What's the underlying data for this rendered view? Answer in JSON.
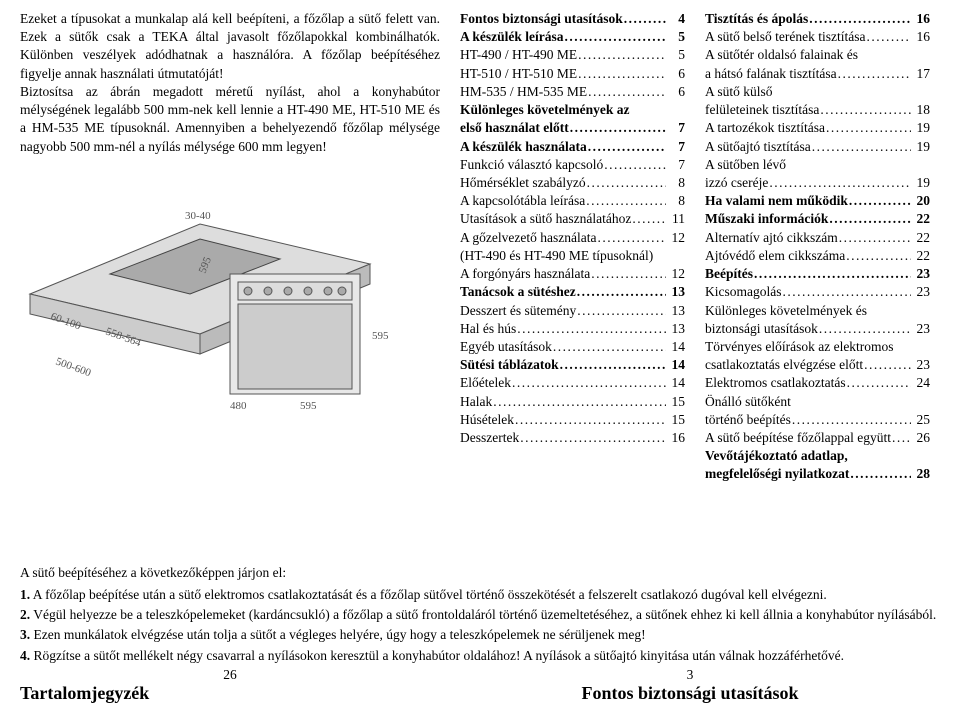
{
  "intro": {
    "p1": "Ezeket a típusokat a munkalap alá kell beépíteni, a főzőlap a sütő felett van. Ezek a sütők csak a TEKA által javasolt főzőlapokkal kombinálhatók. Különben veszélyek adódhatnak a használóra. A főzőlap beépítéséhez figyelje annak használati útmutatóját!",
    "p2": "Biztosítsa az ábrán megadott méretű nyílást, ahol a konyhabútor mélységének legalább 500 mm-nek kell lennie a HT-490 ME, HT-510 ME és a HM-535 ME típusoknál. Amennyiben a behelyezendő főzőlap mélysége nagyobb 500 mm-nél a nyílás mélysége 600 mm legyen!"
  },
  "toc_left": [
    {
      "label": "Fontos biztonsági utasítások",
      "page": "4",
      "bold": true
    },
    {
      "label": "A készülék leírása",
      "page": "5",
      "bold": true
    },
    {
      "label": "HT-490 / HT-490 ME",
      "page": "5",
      "bold": false
    },
    {
      "label": "HT-510 / HT-510 ME",
      "page": "6",
      "bold": false
    },
    {
      "label": "HM-535 / HM-535 ME",
      "page": "6",
      "bold": false
    },
    {
      "label": "Különleges követelmények az első használat előtt",
      "page": "7",
      "bold": true,
      "wrap": true
    },
    {
      "label": "A készülék használata",
      "page": "7",
      "bold": true
    },
    {
      "label": "Funkció választó kapcsoló",
      "page": "7",
      "bold": false
    },
    {
      "label": "Hőmérséklet szabályzó",
      "page": "8",
      "bold": false
    },
    {
      "label": "A kapcsolótábla leírása",
      "page": "8",
      "bold": false
    },
    {
      "label": "Utasítások a sütő használatához",
      "page": "11",
      "bold": false
    },
    {
      "label": "A gőzelvezető használata",
      "page": "12",
      "bold": false
    },
    {
      "label": "(HT-490 és HT-490 ME típusoknál)",
      "page": "",
      "bold": false,
      "nodots": true
    },
    {
      "label": "A forgónyárs használata",
      "page": "12",
      "bold": false
    },
    {
      "label": "Tanácsok a sütéshez",
      "page": "13",
      "bold": true
    },
    {
      "label": "Desszert és sütemény",
      "page": "13",
      "bold": false
    },
    {
      "label": "Hal és hús",
      "page": "13",
      "bold": false
    },
    {
      "label": "Egyéb utasítások",
      "page": "14",
      "bold": false
    },
    {
      "label": "Sütési táblázatok",
      "page": "14",
      "bold": true
    },
    {
      "label": "Előételek",
      "page": "14",
      "bold": false
    },
    {
      "label": "Halak",
      "page": "15",
      "bold": false
    },
    {
      "label": "Húsételek",
      "page": "15",
      "bold": false
    },
    {
      "label": "Desszertek",
      "page": "16",
      "bold": false
    }
  ],
  "toc_right": [
    {
      "label": "Tisztítás és ápolás",
      "page": "16",
      "bold": true
    },
    {
      "label": "A sütő belső terének tisztítása",
      "page": "16",
      "bold": false
    },
    {
      "label": "A sütőtér oldalsó falainak és a hátsó falának tisztítása",
      "page": "17",
      "bold": false,
      "wrap": true
    },
    {
      "label": "A sütő külső felületeinek tisztítása",
      "page": "18",
      "bold": false,
      "wrap": true
    },
    {
      "label": "A tartozékok tisztítása",
      "page": "19",
      "bold": false
    },
    {
      "label": "A sütőajtó tisztítása",
      "page": "19",
      "bold": false
    },
    {
      "label": "A sütőben lévő izzó cseréje",
      "page": "19",
      "bold": false,
      "wrap": true
    },
    {
      "label": "Ha valami nem működik",
      "page": "20",
      "bold": true
    },
    {
      "label": "Műszaki információk",
      "page": "22",
      "bold": true
    },
    {
      "label": "Alternatív ajtó cikkszám",
      "page": "22",
      "bold": false
    },
    {
      "label": "Ajtóvédő elem cikkszáma",
      "page": "22",
      "bold": false
    },
    {
      "label": "Beépítés",
      "page": "23",
      "bold": true
    },
    {
      "label": "Kicsomagolás",
      "page": "23",
      "bold": false
    },
    {
      "label": "Különleges követelmények és biztonsági utasítások",
      "page": "23",
      "bold": false,
      "wrap": true
    },
    {
      "label": "Törvényes előírások az elektromos csatlakoztatás elvégzése előtt",
      "page": "23",
      "bold": false,
      "wrap": true
    },
    {
      "label": "Elektromos csatlakoztatás",
      "page": "24",
      "bold": false
    },
    {
      "label": "Önálló sütőként történő beépítés",
      "page": "25",
      "bold": false,
      "wrap": true
    },
    {
      "label": "A sütő beépítése főzőlappal együtt",
      "page": "26",
      "bold": false
    },
    {
      "label": "Vevőtájékoztató adatlap, megfelelőségi nyilatkozat",
      "page": "28",
      "bold": true,
      "wrap": true
    }
  ],
  "bottom": {
    "lead": "A sütő beépítéséhez a következőképpen járjon el:",
    "steps": [
      "A főzőlap beépítése után a sütő elektromos csatlakoztatását és a főzőlap sütővel történő összekötését a felszerelt csatlakozó dugóval kell elvégezni.",
      "Végül helyezze be a teleszkópelemeket (kardáncsukló) a főzőlap a sütő frontoldaláról történő üzemeltetéséhez, a sütőnek ehhez ki kell állnia a konyhabútor nyílásából.",
      "Ezen munkálatok elvégzése után tolja a sütőt a végleges helyére, úgy hogy a teleszkópelemek ne sérüljenek meg!",
      "Rögzítse a sütőt mellékelt négy csavarral a nyílásokon keresztül a konyhabútor oldalához! A nyílások a sütőajtó kinyitása után válnak hozzáférhetővé."
    ],
    "page_left": "26",
    "page_right": "3",
    "heading_left": "Tartalomjegyzék",
    "heading_right": "Fontos biztonsági utasítások"
  },
  "diagram_labels": {
    "a": "30-40",
    "b": "595",
    "c": "595",
    "d": "595",
    "e": "480",
    "f": "60-100",
    "g": "558-564",
    "h": "500-600"
  }
}
